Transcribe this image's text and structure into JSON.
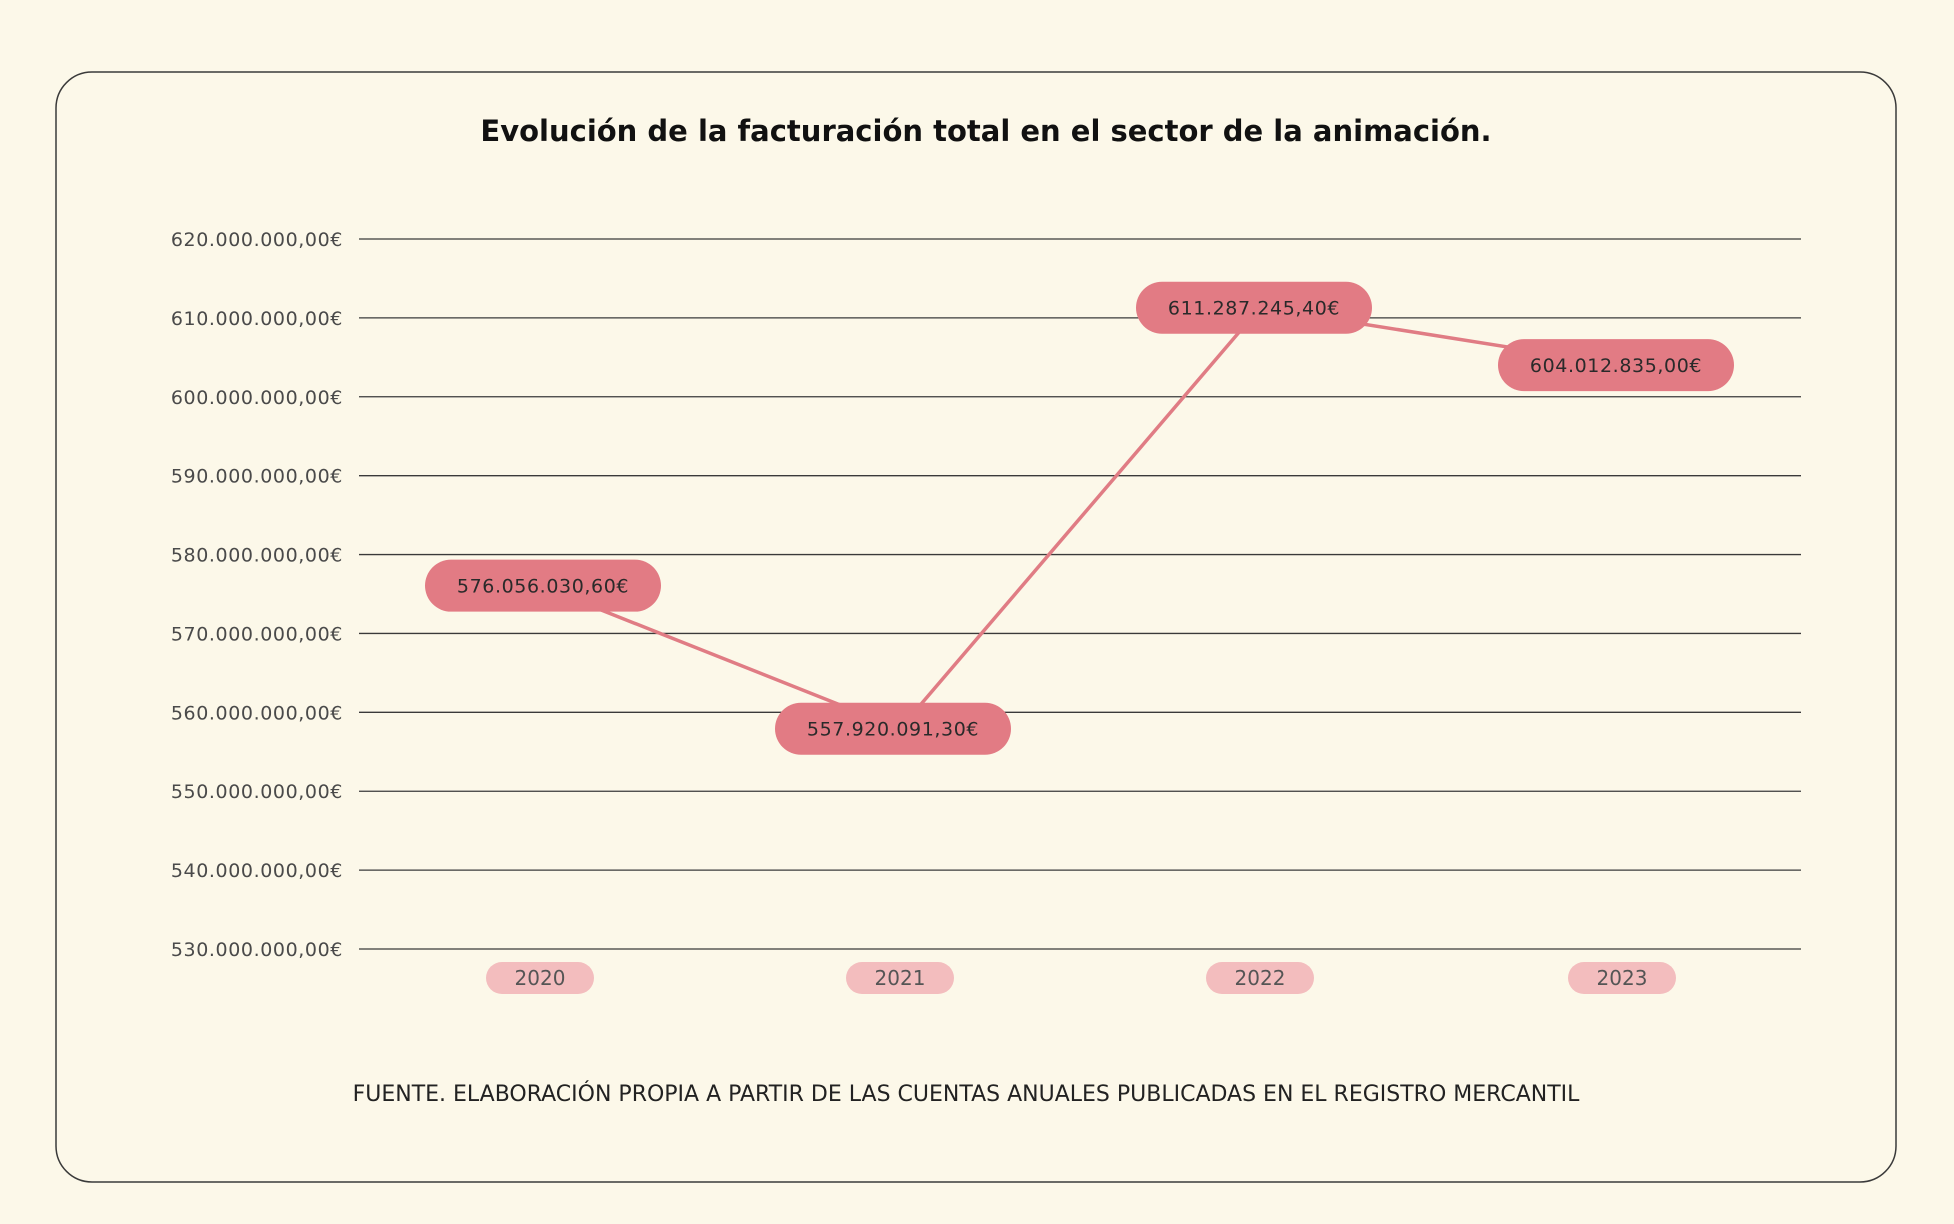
{
  "colors": {
    "background": "#fcf8e9",
    "line": "#e07c84",
    "data_label_fill": "#e27b84",
    "category_pill_fill": "#f3bdbe",
    "grid": "#3a3a3a",
    "frame": "#3a3a3a"
  },
  "chart_data": {
    "type": "line",
    "title": "Evolución de la facturación total en el sector de la animación.",
    "source": "FUENTE. ELABORACIÓN PROPIA A PARTIR DE LAS CUENTAS ANUALES PUBLICADAS EN EL REGISTRO MERCANTIL",
    "categories": [
      "2020",
      "2021",
      "2022",
      "2023"
    ],
    "values": [
      576056030.6,
      557920091.3,
      611287245.4,
      604012835.0
    ],
    "data_labels": [
      "576.056.030,60€",
      "557.920.091,30€",
      "611.287.245,40€",
      "604.012.835,00€"
    ],
    "ylim": [
      530000000,
      620000000
    ],
    "yticks": [
      {
        "value": 620000000,
        "label": "620.000.000,00€"
      },
      {
        "value": 610000000,
        "label": "610.000.000,00€"
      },
      {
        "value": 600000000,
        "label": "600.000.000,00€"
      },
      {
        "value": 590000000,
        "label": "590.000.000,00€"
      },
      {
        "value": 580000000,
        "label": "580.000.000,00€"
      },
      {
        "value": 570000000,
        "label": "570.000.000,00€"
      },
      {
        "value": 560000000,
        "label": "560.000.000,00€"
      },
      {
        "value": 550000000,
        "label": "550.000.000,00€"
      },
      {
        "value": 540000000,
        "label": "540.000.000,00€"
      },
      {
        "value": 530000000,
        "label": "530.000.000,00€"
      }
    ],
    "grid": true,
    "legend": "none"
  }
}
